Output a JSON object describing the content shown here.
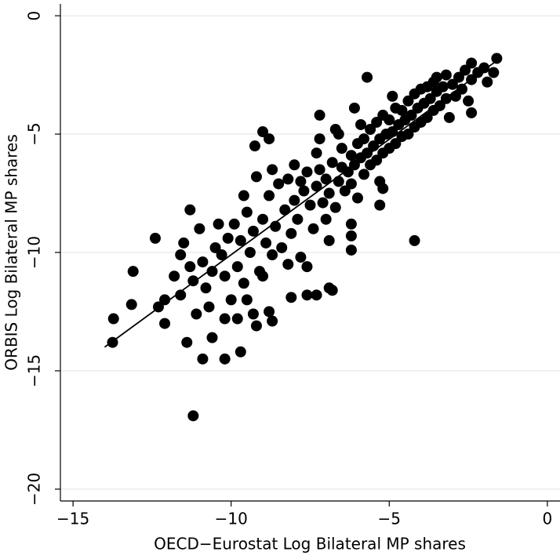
{
  "chart_data": {
    "type": "scatter",
    "xlabel": "OECD−Eurostat Log Bilateral MP shares",
    "ylabel": "ORBIS Log Bilateral MP shares",
    "color": "#000000",
    "grid": true,
    "xlim": [
      -15.4,
      0.4
    ],
    "ylim": [
      -20.5,
      0.5
    ],
    "xticks": [
      {
        "value": -15,
        "label": "−15"
      },
      {
        "value": -10,
        "label": "−10"
      },
      {
        "value": -5,
        "label": "−5"
      },
      0
    ],
    "yticks": [
      {
        "value": -20,
        "label": "−20"
      },
      {
        "value": -15,
        "label": "−15"
      },
      {
        "value": -10,
        "label": "−10"
      },
      {
        "value": -5,
        "label": "−5"
      },
      0
    ],
    "fit": {
      "x": [
        -14,
        -1.6
      ],
      "y": [
        -14,
        -1.9
      ]
    },
    "x": [
      -13.72,
      -13.75,
      -13.1,
      -13.15,
      -12.4,
      -12.1,
      -12.1,
      -11.3,
      -11.2,
      -10.9,
      -10.2,
      -10.6,
      -11.4,
      -11.1,
      -9.7,
      -9.25,
      -8.8,
      -9.0,
      -4.2,
      -5.7,
      -6.9,
      -6.8,
      -7.3,
      -7.6,
      -8.1,
      -8.8,
      -8.7,
      -9.3,
      -9.2,
      -9.8,
      -9.5,
      -7.2,
      -7.2,
      -6.7,
      -6.2,
      -6.2,
      -6.2,
      -5.3,
      -5.2,
      -6.1,
      -1.6,
      -1.7,
      -2.4,
      -2.4,
      -11.8,
      -11.6,
      -11.5,
      -11.3,
      -11.2,
      -11.0,
      -10.9,
      -10.8,
      -10.7,
      -10.6,
      -10.5,
      -10.4,
      -10.3,
      -10.2,
      -10.1,
      -10.0,
      -9.9,
      -9.8,
      -9.7,
      -9.6,
      -9.5,
      -9.4,
      -9.3,
      -9.2,
      -9.1,
      -9.0,
      -8.9,
      -8.8,
      -8.7,
      -8.6,
      -8.5,
      -8.4,
      -8.3,
      -8.2,
      -8.1,
      -8.0,
      -8.0,
      -7.9,
      -7.8,
      -7.7,
      -7.6,
      -7.5,
      -7.4,
      -7.3,
      -7.2,
      -7.1,
      -7.0,
      -7.0,
      -6.9,
      -6.8,
      -6.7,
      -6.6,
      -6.5,
      -6.5,
      -6.4,
      -6.3,
      -6.2,
      -6.2,
      -6.1,
      -6.0,
      -6.0,
      -5.9,
      -5.8,
      -5.8,
      -5.7,
      -5.6,
      -5.6,
      -5.5,
      -5.4,
      -5.4,
      -5.3,
      -5.2,
      -5.2,
      -5.1,
      -5.0,
      -5.0,
      -4.9,
      -4.8,
      -4.8,
      -4.7,
      -4.6,
      -4.6,
      -4.5,
      -4.4,
      -4.4,
      -4.3,
      -4.2,
      -4.2,
      -4.1,
      -4.0,
      -4.0,
      -3.9,
      -3.8,
      -3.8,
      -3.7,
      -3.6,
      -3.5,
      -3.5,
      -3.4,
      -3.3,
      -3.2,
      -3.2,
      -3.1,
      -3.0,
      -2.9,
      -2.8,
      -2.7,
      -2.6,
      -2.5,
      -2.4,
      -2.2,
      -2.0,
      -1.9,
      -3.6,
      -4.9,
      -5.9,
      -6.6,
      -7.3,
      -7.8,
      -8.7,
      -9.6,
      -5.3,
      -6.9,
      -7.6,
      -8.2,
      -9.0,
      -10.2,
      -11.6,
      -12.3
    ],
    "values": [
      -12.8,
      -13.8,
      -10.8,
      -12.2,
      -9.4,
      -12.0,
      -13.0,
      -8.2,
      -16.9,
      -14.5,
      -14.5,
      -13.6,
      -13.8,
      -12.6,
      -14.2,
      -5.5,
      -5.2,
      -4.9,
      -9.5,
      -2.6,
      -11.5,
      -11.6,
      -11.8,
      -11.8,
      -11.9,
      -12.5,
      -12.9,
      -12.6,
      -13.1,
      -12.8,
      -12.0,
      -4.2,
      -5.2,
      -4.8,
      -9.9,
      -8.8,
      -9.3,
      -8.0,
      -7.3,
      -3.9,
      -1.8,
      -2.4,
      -2.0,
      -4.1,
      -11.0,
      -10.1,
      -9.6,
      -10.6,
      -11.2,
      -9.0,
      -10.4,
      -11.5,
      -12.3,
      -10.8,
      -9.8,
      -8.8,
      -10.1,
      -11.0,
      -9.4,
      -12.0,
      -8.8,
      -10.6,
      -9.5,
      -11.3,
      -8.3,
      -10.0,
      -9.1,
      -6.8,
      -10.8,
      -8.6,
      -9.6,
      -7.6,
      -10.1,
      -8.9,
      -7.1,
      -9.8,
      -8.2,
      -6.9,
      -9.2,
      -7.8,
      -6.3,
      -8.6,
      -10.2,
      -7.4,
      -6.6,
      -8.0,
      -9.0,
      -7.2,
      -6.5,
      -7.9,
      -8.6,
      -6.9,
      -7.5,
      -6.2,
      -8.1,
      -7.0,
      -6.4,
      -5.6,
      -7.4,
      -6.6,
      -5.9,
      -7.1,
      -6.3,
      -5.4,
      -7.7,
      -6.0,
      -6.7,
      -5.2,
      -5.8,
      -6.3,
      -4.8,
      -5.5,
      -6.1,
      -4.5,
      -5.2,
      -5.8,
      -4.2,
      -5.0,
      -5.6,
      -4.4,
      -4.9,
      -5.4,
      -3.9,
      -4.6,
      -5.1,
      -4.0,
      -4.4,
      -5.0,
      -3.6,
      -4.2,
      -4.7,
      -3.3,
      -3.9,
      -4.5,
      -3.1,
      -3.7,
      -4.3,
      -3.0,
      -3.5,
      -4.0,
      -3.2,
      -2.6,
      -3.8,
      -3.0,
      -3.5,
      -2.5,
      -4.3,
      -2.9,
      -3.4,
      -2.6,
      -3.1,
      -2.3,
      -3.6,
      -2.7,
      -2.4,
      -2.2,
      -2.8,
      -2.8,
      -3.4,
      -4.6,
      -5.0,
      -5.8,
      -7.0,
      -6.5,
      -7.6,
      -7.0,
      -9.5,
      -10.6,
      -10.5,
      -11.0,
      -12.8,
      -11.8,
      -12.3
    ]
  }
}
